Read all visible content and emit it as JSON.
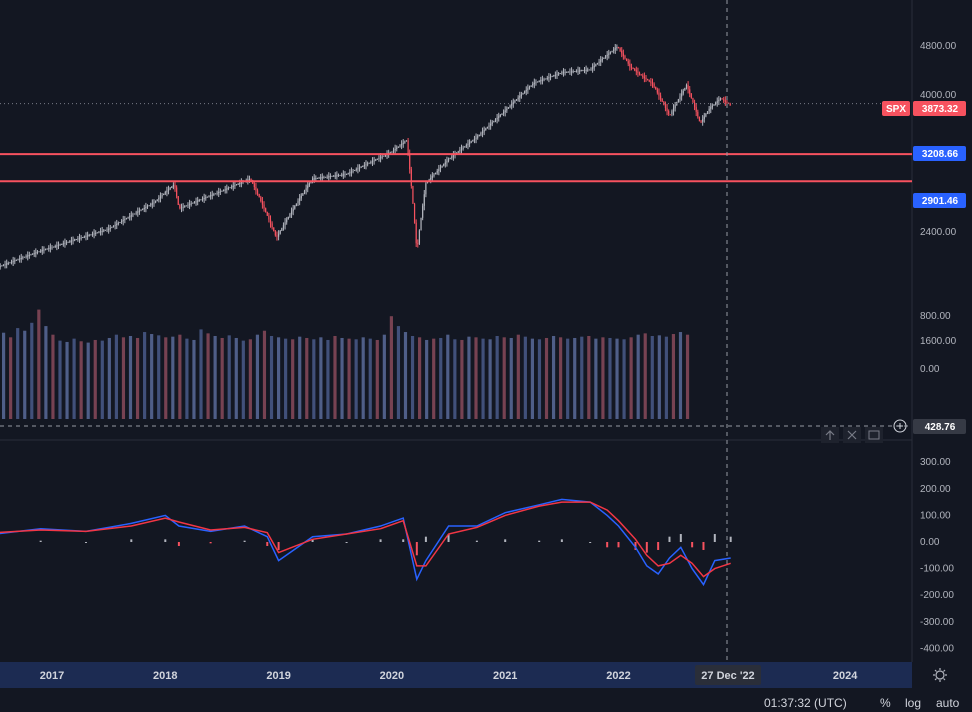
{
  "chart_data": {
    "type": "line",
    "title": "",
    "symbol": "SPX",
    "last_price": 3873.32,
    "last_price_label": "3873.32",
    "x_axis_labels": [
      "2017",
      "2018",
      "2019",
      "2020",
      "2021",
      "2022",
      "2024"
    ],
    "crosshair_date_label": "27 Dec '22",
    "crosshair_value_label": "428.76",
    "horizontal_levels": [
      {
        "value": 3208.66,
        "label": "3208.66"
      },
      {
        "value": 2901.46,
        "label": "2901.46"
      }
    ],
    "price_pane": {
      "ylabels": [
        "4800.00",
        "4000.00",
        "2400.00",
        "1600.00"
      ],
      "scale": "log",
      "series": [
        {
          "name": "SPX",
          "x": [
            2016.5,
            2016.9,
            2017.0,
            2017.5,
            2017.9,
            2018.08,
            2018.12,
            2018.5,
            2018.75,
            2018.98,
            2019.3,
            2019.6,
            2019.99,
            2020.13,
            2020.22,
            2020.3,
            2020.5,
            2020.75,
            2020.99,
            2021.25,
            2021.5,
            2021.75,
            2021.99,
            2022.1,
            2022.2,
            2022.3,
            2022.45,
            2022.6,
            2022.72,
            2022.8,
            2022.9,
            2022.99
          ],
          "values": [
            2100,
            2240,
            2270,
            2430,
            2680,
            2870,
            2620,
            2800,
            2930,
            2350,
            2930,
            2980,
            3230,
            3380,
            2230,
            2880,
            3150,
            3420,
            3760,
            4180,
            4350,
            4400,
            4790,
            4450,
            4300,
            4170,
            3700,
            4150,
            3600,
            3800,
            3950,
            3850
          ]
        }
      ]
    },
    "volume_pane": {
      "ylabels": [
        "800.00",
        "0.00"
      ],
      "series": [
        {
          "name": "",
          "values": [
            550,
            480,
            620,
            580,
            700,
            900,
            650,
            520,
            430,
            410,
            460,
            420,
            400,
            440,
            430,
            470,
            520,
            480,
            500,
            470,
            560,
            530,
            510,
            480,
            490,
            520,
            460,
            440,
            600,
            540,
            500,
            470,
            510,
            470,
            430,
            450,
            520,
            580,
            500,
            480,
            460,
            450,
            490,
            470,
            450,
            480,
            440,
            500,
            470,
            460,
            450,
            480,
            460,
            440,
            520,
            800,
            650,
            560,
            500,
            480,
            440,
            460,
            470,
            520,
            450,
            440,
            490,
            480,
            460,
            450,
            500,
            480,
            470,
            520,
            490,
            460,
            450,
            470,
            500,
            480,
            460,
            470,
            490,
            500,
            460,
            480,
            470,
            460,
            450,
            480,
            520,
            540,
            500,
            510,
            490,
            530,
            560,
            520
          ]
        }
      ]
    },
    "macd_pane": {
      "ylabels": [
        "300.00",
        "200.00",
        "100.00",
        "0.00",
        "-100.00",
        "-200.00",
        "-300.00",
        "-400.00"
      ],
      "series": [
        {
          "name": "",
          "color": "#2962ff",
          "x": [
            2016.5,
            2016.9,
            2017.3,
            2017.7,
            2018.0,
            2018.12,
            2018.4,
            2018.7,
            2018.9,
            2019.0,
            2019.3,
            2019.6,
            2019.9,
            2020.1,
            2020.22,
            2020.3,
            2020.5,
            2020.75,
            2021.0,
            2021.3,
            2021.5,
            2021.75,
            2021.9,
            2022.0,
            2022.15,
            2022.25,
            2022.35,
            2022.45,
            2022.55,
            2022.65,
            2022.75,
            2022.85,
            2022.99
          ],
          "values": [
            30,
            50,
            40,
            70,
            100,
            60,
            40,
            60,
            20,
            -70,
            20,
            30,
            60,
            90,
            -140,
            -70,
            60,
            60,
            110,
            140,
            160,
            150,
            100,
            60,
            -20,
            -90,
            -120,
            -60,
            -20,
            -100,
            -160,
            -70,
            -60
          ]
        },
        {
          "name": "",
          "color": "#f23645",
          "x": [
            2016.5,
            2016.9,
            2017.3,
            2017.7,
            2018.0,
            2018.12,
            2018.4,
            2018.7,
            2018.9,
            2019.0,
            2019.3,
            2019.6,
            2019.9,
            2020.1,
            2020.22,
            2020.3,
            2020.5,
            2020.75,
            2021.0,
            2021.3,
            2021.5,
            2021.75,
            2021.9,
            2022.0,
            2022.15,
            2022.25,
            2022.35,
            2022.45,
            2022.55,
            2022.65,
            2022.75,
            2022.85,
            2022.99
          ],
          "values": [
            35,
            45,
            40,
            60,
            90,
            75,
            45,
            55,
            35,
            -40,
            10,
            30,
            50,
            80,
            -90,
            -90,
            30,
            55,
            100,
            135,
            150,
            150,
            120,
            80,
            10,
            -50,
            -90,
            -80,
            -50,
            -80,
            -130,
            -100,
            -80
          ]
        }
      ],
      "histogram": [
        -5,
        5,
        0,
        10,
        10,
        -15,
        -5,
        5,
        -15,
        -30,
        10,
        0,
        10,
        10,
        -50,
        20,
        30,
        5,
        10,
        5,
        10,
        0,
        -20,
        -20,
        -30,
        -40,
        -30,
        20,
        30,
        -20,
        -30,
        30,
        20
      ]
    },
    "colors": {
      "background": "#131722",
      "up": "#b2b5be",
      "down": "#f7525f",
      "level_line": "#f7525f",
      "axis_badge": "#2962ff",
      "symbol_badge": "#f7525f"
    }
  },
  "footer": {
    "time": "01:37:32 (UTC)",
    "percent": "%",
    "log": "log",
    "auto": "auto"
  },
  "icons": [
    "settings-icon",
    "arrow-up-icon",
    "close-icon",
    "maximize-icon",
    "plus-icon"
  ]
}
